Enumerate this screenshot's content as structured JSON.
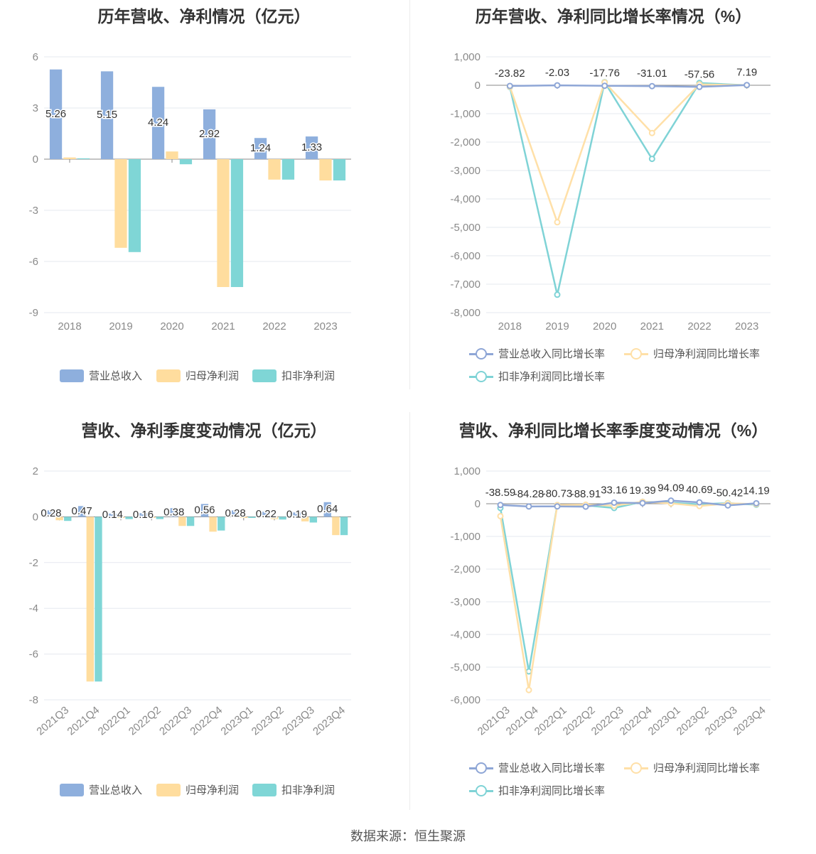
{
  "colors": {
    "revenue": "#8eafdd",
    "parent_profit": "#ffdd9e",
    "deducted_profit": "#7fd6d6",
    "revenue_line": "#8ea6d6",
    "parent_line": "#ffe0a8",
    "deducted_line": "#7fd3d6"
  },
  "charts": [
    {
      "id": "annual-values",
      "title": "历年营收、净利情况（亿元）",
      "legend": [
        "营业总收入",
        "归母净利润",
        "扣非净利润"
      ]
    },
    {
      "id": "annual-growth",
      "title": "历年营收、净利同比增长率情况（%）",
      "legend": [
        "营业总收入同比增长率",
        "归母净利润同比增长率",
        "扣非净利润同比增长率"
      ]
    },
    {
      "id": "quarter-values",
      "title": "营收、净利季度变动情况（亿元）",
      "legend": [
        "营业总收入",
        "归母净利润",
        "扣非净利润"
      ]
    },
    {
      "id": "quarter-growth",
      "title": "营收、净利同比增长率季度变动情况（%）",
      "legend": [
        "营业总收入同比增长率",
        "归母净利润同比增长率",
        "扣非净利润同比增长率"
      ]
    }
  ],
  "footer": "数据来源：恒生聚源",
  "chart_data": [
    {
      "type": "bar",
      "categories": [
        "2018",
        "2019",
        "2020",
        "2021",
        "2022",
        "2023"
      ],
      "ylim": [
        -9,
        6
      ],
      "yticks": [
        "6",
        "3",
        "0",
        "-3",
        "-6",
        "-9"
      ],
      "series": [
        {
          "name": "营业总收入",
          "values": [
            5.26,
            5.15,
            4.24,
            2.92,
            1.24,
            1.33
          ],
          "labels": [
            "5.26",
            "5.15",
            "4.24",
            "2.92",
            "1.24",
            "1.33"
          ]
        },
        {
          "name": "归母净利润",
          "values": [
            0.1,
            -5.2,
            0.45,
            -7.5,
            -1.2,
            -1.25
          ]
        },
        {
          "name": "扣非净利润",
          "values": [
            0.05,
            -5.45,
            -0.3,
            -7.5,
            -1.2,
            -1.25
          ]
        }
      ]
    },
    {
      "type": "line",
      "categories": [
        "2018",
        "2019",
        "2020",
        "2021",
        "2022",
        "2023"
      ],
      "ylim": [
        -8000,
        1000
      ],
      "yticks": [
        "1,000",
        "0",
        "-1,000",
        "-2,000",
        "-3,000",
        "-4,000",
        "-5,000",
        "-6,000",
        "-7,000",
        "-8,000"
      ],
      "series": [
        {
          "name": "营业总收入同比增长率",
          "values": [
            -23.82,
            -2.03,
            -17.76,
            -31.01,
            -57.56,
            7.19
          ],
          "labels": [
            "-23.82",
            "-2.03",
            "-17.76",
            "-31.01",
            "-57.56",
            "7.19"
          ]
        },
        {
          "name": "归母净利润同比增长率",
          "values": [
            -50,
            -4820,
            100,
            -1680,
            30,
            0
          ]
        },
        {
          "name": "扣非净利润同比增长率",
          "values": [
            -60,
            -7370,
            110,
            -2590,
            80,
            0
          ]
        }
      ]
    },
    {
      "type": "bar",
      "categories": [
        "2021Q3",
        "2021Q4",
        "2022Q1",
        "2022Q2",
        "2022Q3",
        "2022Q4",
        "2023Q1",
        "2023Q2",
        "2023Q3",
        "2023Q4"
      ],
      "ylim": [
        -8,
        2
      ],
      "yticks": [
        "2",
        "0",
        "-2",
        "-4",
        "-6",
        "-8"
      ],
      "series": [
        {
          "name": "营业总收入",
          "values": [
            0.28,
            0.47,
            0.14,
            0.16,
            0.38,
            0.56,
            0.28,
            0.22,
            0.19,
            0.64
          ],
          "labels": [
            "0.28",
            "0.47",
            "0.14",
            "0.16",
            "0.38",
            "0.56",
            "0.28",
            "0.22",
            "0.19",
            "0.64"
          ]
        },
        {
          "name": "归母净利润",
          "values": [
            -0.15,
            -7.2,
            -0.05,
            -0.05,
            -0.4,
            -0.65,
            -0.05,
            -0.1,
            -0.2,
            -0.8
          ]
        },
        {
          "name": "扣非净利润",
          "values": [
            -0.18,
            -7.2,
            -0.1,
            -0.1,
            -0.4,
            -0.6,
            -0.05,
            -0.12,
            -0.25,
            -0.8
          ]
        }
      ]
    },
    {
      "type": "line",
      "categories": [
        "2021Q3",
        "2021Q4",
        "2022Q1",
        "2022Q2",
        "2022Q3",
        "2022Q4",
        "2023Q1",
        "2023Q2",
        "2023Q3",
        "2023Q4"
      ],
      "ylim": [
        -6000,
        1000
      ],
      "yticks": [
        "1,000",
        "0",
        "-1,000",
        "-2,000",
        "-3,000",
        "-4,000",
        "-5,000",
        "-6,000"
      ],
      "series": [
        {
          "name": "营业总收入同比增长率",
          "values": [
            -38.59,
            -84.28,
            -80.73,
            -88.91,
            33.16,
            19.39,
            94.09,
            40.69,
            -50.42,
            14.19
          ],
          "labels": [
            "-38.59",
            "-84.28",
            "-80.73",
            "-88.91",
            "33.16",
            "19.39",
            "94.09",
            "40.69",
            "-50.42",
            "14.19"
          ]
        },
        {
          "name": "归母净利润同比增长率",
          "values": [
            -380,
            -5700,
            -40,
            -30,
            -60,
            60,
            10,
            -70,
            10,
            -10
          ]
        },
        {
          "name": "扣非净利润同比增长率",
          "values": [
            -130,
            -5130,
            -40,
            -50,
            -130,
            60,
            30,
            -20,
            20,
            -30
          ]
        }
      ]
    }
  ]
}
